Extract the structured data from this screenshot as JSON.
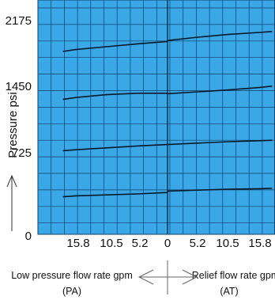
{
  "chart_data": {
    "type": "line",
    "title": "",
    "ylabel": "Pressure psi",
    "ylim": [
      0,
      2280
    ],
    "yticks": [
      "2175",
      "1450",
      "725",
      "0"
    ],
    "x_ticks": [
      "15.8",
      "10.5",
      "5.2",
      "0",
      "5.2",
      "10.5",
      "15.8"
    ],
    "x_left_label": "Low pressure flow rate gpm",
    "x_left_sub": "(PA)",
    "x_right_label": "Relief flow rate gpm",
    "x_right_sub": "(AT)",
    "grid": true,
    "colors": {
      "plot_bg": "#3aa8e6",
      "grid": "#0e3f6b",
      "line": "#0b1a2a"
    },
    "series": [
      {
        "x": [
          -18,
          -15.8,
          -10.5,
          -5.2,
          -0.01,
          0.01,
          5.2,
          10.5,
          15.8,
          18
        ],
        "values": [
          1925,
          1945,
          1975,
          2005,
          2030,
          2040,
          2075,
          2105,
          2125,
          2135
        ]
      },
      {
        "x": [
          -18,
          -15.8,
          -10.5,
          -5.2,
          -0.01,
          0.01,
          5.2,
          10.5,
          15.8,
          18
        ],
        "values": [
          1420,
          1440,
          1470,
          1485,
          1485,
          1480,
          1500,
          1520,
          1545,
          1560
        ]
      },
      {
        "x": [
          -18,
          -15.8,
          -10.5,
          -5.2,
          -0.01,
          0.01,
          5.2,
          10.5,
          15.8,
          18
        ],
        "values": [
          880,
          890,
          910,
          930,
          945,
          945,
          960,
          975,
          985,
          990
        ]
      },
      {
        "x": [
          -18,
          -15.8,
          -10.5,
          -5.2,
          -0.01,
          0.01,
          5.2,
          10.5,
          15.8,
          18
        ],
        "values": [
          395,
          405,
          415,
          425,
          440,
          455,
          465,
          475,
          480,
          485
        ]
      }
    ]
  }
}
